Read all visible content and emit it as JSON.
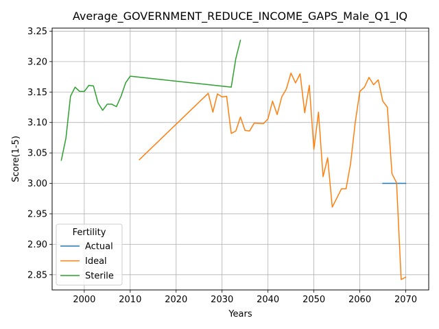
{
  "chart_data": {
    "type": "line",
    "title": "Average_GOVERNMENT_REDUCE_INCOME_GAPS_Male_Q1_IQ",
    "xlabel": "Years",
    "ylabel": "Score(1-5)",
    "xlim": [
      1993,
      2075
    ],
    "ylim": [
      2.825,
      3.255
    ],
    "x_ticks": [
      2000,
      2010,
      2020,
      2030,
      2040,
      2050,
      2060,
      2070
    ],
    "y_ticks": [
      2.85,
      2.9,
      2.95,
      3.0,
      3.05,
      3.1,
      3.15,
      3.2,
      3.25
    ],
    "y_tick_labels": [
      "2.85",
      "2.90",
      "2.95",
      "3.00",
      "3.05",
      "3.10",
      "3.15",
      "3.20",
      "3.25"
    ],
    "grid": true,
    "legend": {
      "title": "Fertility",
      "placement": "lower-left"
    },
    "series": [
      {
        "name": "Actual",
        "color": "#1f77b4",
        "x": [
          2065,
          2066,
          2067,
          2068,
          2069,
          2070
        ],
        "y": [
          3.0,
          3.0,
          3.0,
          3.0,
          3.0,
          3.0
        ]
      },
      {
        "name": "Ideal",
        "color": "#ff7f0e",
        "x": [
          2012,
          2027,
          2028,
          2029,
          2030,
          2031,
          2032,
          2033,
          2034,
          2035,
          2036,
          2037,
          2039,
          2040,
          2041,
          2042,
          2043,
          2044,
          2045,
          2046,
          2047,
          2048,
          2049,
          2050,
          2051,
          2052,
          2053,
          2054,
          2056,
          2057,
          2058,
          2059,
          2060,
          2061,
          2062,
          2063,
          2064,
          2065,
          2066,
          2067,
          2068,
          2069,
          2070
        ],
        "y": [
          3.039,
          3.148,
          3.117,
          3.147,
          3.142,
          3.143,
          3.082,
          3.086,
          3.109,
          3.087,
          3.086,
          3.099,
          3.098,
          3.106,
          3.135,
          3.113,
          3.142,
          3.155,
          3.181,
          3.165,
          3.18,
          3.116,
          3.161,
          3.056,
          3.117,
          3.011,
          3.042,
          2.961,
          2.991,
          2.991,
          3.033,
          3.1,
          3.151,
          3.158,
          3.174,
          3.162,
          3.17,
          3.135,
          3.125,
          3.016,
          3.001,
          2.842,
          2.846
        ]
      },
      {
        "name": "Sterile",
        "color": "#2ca02c",
        "x": [
          1995,
          1996,
          1997,
          1998,
          1999,
          2000,
          2001,
          2002,
          2003,
          2004,
          2005,
          2006,
          2007,
          2008,
          2009,
          2010,
          2032,
          2033,
          2034
        ],
        "y": [
          3.038,
          3.074,
          3.143,
          3.158,
          3.151,
          3.151,
          3.161,
          3.16,
          3.132,
          3.12,
          3.13,
          3.13,
          3.126,
          3.143,
          3.165,
          3.176,
          3.158,
          3.205,
          3.235
        ]
      }
    ]
  }
}
